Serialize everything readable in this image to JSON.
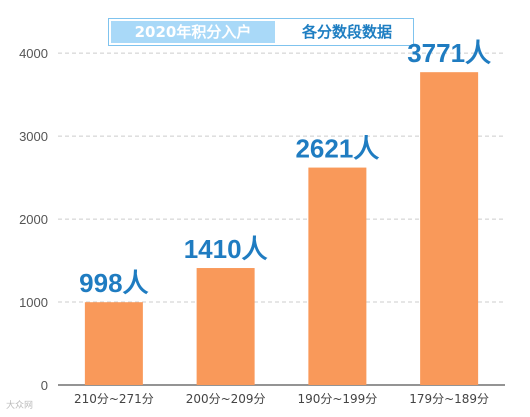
{
  "header": {
    "title_left": "2020年积分入户",
    "title_right": "各分数段数据"
  },
  "chart_data": {
    "type": "bar",
    "categories": [
      "210分~271分",
      "200分~209分",
      "190分~199分",
      "179分~189分"
    ],
    "values": [
      998,
      1410,
      2621,
      3771
    ],
    "data_labels": [
      "998人",
      "1410人",
      "2621人",
      "3771人"
    ],
    "yticks": [
      "0",
      "1000",
      "2000",
      "3000",
      "4000"
    ],
    "ylim": [
      0,
      4400
    ],
    "grid": true,
    "colors": {
      "bar": "#f9995a",
      "label": "#1f7cc1",
      "grid": "#cccccc",
      "axis": "#555555"
    }
  },
  "watermark": "大众网"
}
